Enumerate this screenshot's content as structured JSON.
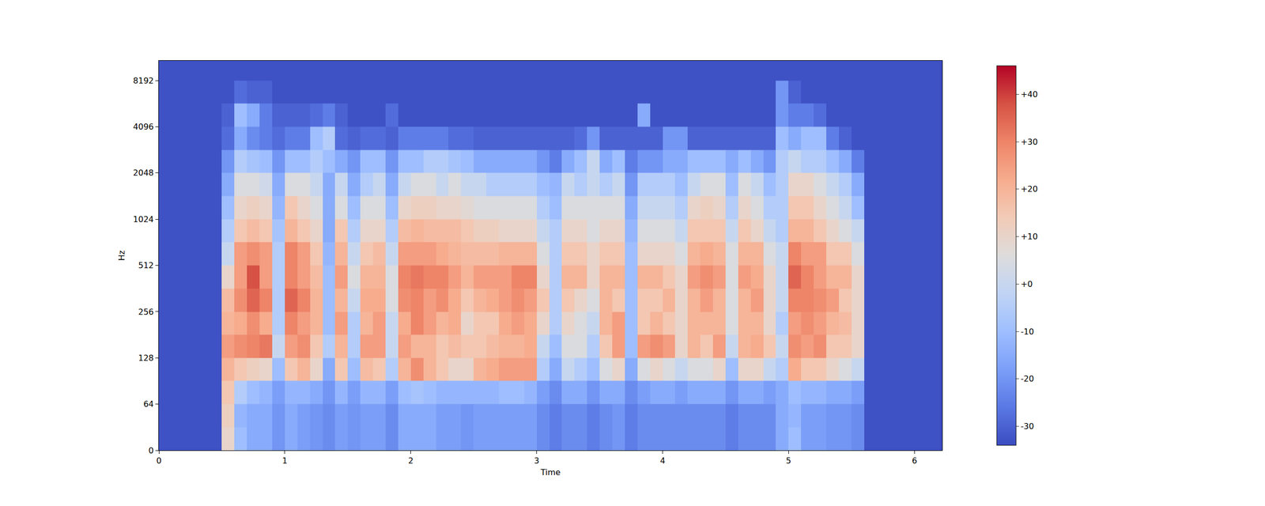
{
  "chart_data": {
    "type": "heatmap",
    "x_label": "Time",
    "y_label": "Hz",
    "log": "y",
    "grid": false,
    "xlim": [
      0,
      6.22
    ],
    "xticks": [
      0,
      1,
      2,
      3,
      4,
      5,
      6
    ],
    "ylim": [
      0,
      11025
    ],
    "yticks": [
      0,
      64,
      128,
      256,
      512,
      1024,
      2048,
      4096,
      8192
    ],
    "x": [
      0.05,
      0.15,
      0.25,
      0.35,
      0.45,
      0.55,
      0.65,
      0.75,
      0.85,
      0.95,
      1.05,
      1.15,
      1.25,
      1.35,
      1.45,
      1.55,
      1.65,
      1.75,
      1.85,
      1.95,
      2.05,
      2.15,
      2.25,
      2.35,
      2.45,
      2.55,
      2.65,
      2.75,
      2.85,
      2.95,
      3.05,
      3.15,
      3.25,
      3.35,
      3.45,
      3.55,
      3.65,
      3.75,
      3.85,
      3.95,
      4.05,
      4.15,
      4.25,
      4.35,
      4.45,
      4.55,
      4.65,
      4.75,
      4.85,
      4.95,
      5.05,
      5.15,
      5.25,
      5.35,
      5.45,
      5.55,
      5.65,
      5.75,
      5.85,
      5.95,
      6.05,
      6.15
    ],
    "y": [
      16,
      48,
      76,
      108,
      152,
      215,
      304,
      431,
      609,
      861,
      1218,
      1722,
      2436,
      3444,
      4871,
      6889,
      9742
    ],
    "cells": [
      [
        -33,
        -33,
        -33,
        -33,
        -33,
        -33,
        -33,
        -33,
        -33,
        -33,
        -33,
        -33,
        -33,
        -33,
        -33,
        -33,
        -33
      ],
      [
        -33,
        -33,
        -33,
        -33,
        -33,
        -33,
        -33,
        -33,
        -33,
        -33,
        -33,
        -33,
        -33,
        -33,
        -33,
        -33,
        -33
      ],
      [
        -33,
        -33,
        -33,
        -33,
        -33,
        -33,
        -33,
        -33,
        -33,
        -33,
        -33,
        -33,
        -33,
        -33,
        -33,
        -33,
        -33
      ],
      [
        -33,
        -33,
        -33,
        -33,
        -33,
        -33,
        -33,
        -33,
        -33,
        -33,
        -33,
        -33,
        -33,
        -33,
        -33,
        -33,
        -33
      ],
      [
        -33,
        -33,
        -33,
        -33,
        -33,
        -33,
        -33,
        -33,
        -33,
        -33,
        -33,
        -33,
        -33,
        -33,
        -33,
        -33,
        -33
      ],
      [
        10,
        12,
        15,
        20,
        25,
        20,
        18,
        10,
        0,
        -5,
        -10,
        -15,
        -20,
        -28,
        -30,
        -33,
        -33
      ],
      [
        -10,
        -12,
        -5,
        15,
        28,
        22,
        28,
        25,
        25,
        15,
        10,
        5,
        -5,
        -15,
        -10,
        -28,
        -33
      ],
      [
        -15,
        -15,
        -10,
        12,
        30,
        28,
        35,
        38,
        28,
        18,
        12,
        5,
        -8,
        -22,
        -15,
        -30,
        -33
      ],
      [
        -15,
        -15,
        -12,
        10,
        32,
        22,
        30,
        25,
        25,
        15,
        10,
        2,
        -10,
        -25,
        -25,
        -30,
        -33
      ],
      [
        -20,
        -20,
        -18,
        -10,
        0,
        -5,
        -5,
        -5,
        -5,
        -8,
        -12,
        -15,
        -20,
        -28,
        -30,
        -33,
        -33
      ],
      [
        -15,
        -15,
        -12,
        15,
        25,
        30,
        35,
        30,
        30,
        20,
        15,
        5,
        -10,
        -25,
        -30,
        -33,
        -33
      ],
      [
        -18,
        -18,
        -12,
        20,
        28,
        25,
        30,
        25,
        25,
        15,
        10,
        5,
        -10,
        -25,
        -30,
        -33,
        -33
      ],
      [
        -20,
        -20,
        -15,
        10,
        15,
        20,
        20,
        18,
        15,
        10,
        5,
        0,
        -5,
        -10,
        -28,
        -33,
        -33
      ],
      [
        -22,
        -22,
        -20,
        -15,
        -5,
        -10,
        -10,
        -10,
        -12,
        -15,
        -15,
        -15,
        -10,
        -5,
        -25,
        -33,
        -33
      ],
      [
        -18,
        -18,
        -12,
        15,
        20,
        25,
        20,
        25,
        20,
        15,
        5,
        0,
        -15,
        -28,
        -30,
        -33,
        -33
      ],
      [
        -20,
        -20,
        -18,
        -10,
        -5,
        -5,
        0,
        5,
        0,
        -5,
        -10,
        -15,
        -20,
        -30,
        -33,
        -33,
        -33
      ],
      [
        -18,
        -18,
        -12,
        18,
        25,
        20,
        22,
        20,
        15,
        10,
        5,
        -5,
        -10,
        -28,
        -33,
        -33,
        -33
      ],
      [
        -18,
        -18,
        -12,
        15,
        25,
        25,
        22,
        20,
        18,
        10,
        5,
        0,
        -10,
        -28,
        -33,
        -33,
        -33
      ],
      [
        -22,
        -22,
        -18,
        -5,
        0,
        0,
        5,
        5,
        0,
        -5,
        -10,
        -15,
        -20,
        -30,
        -28,
        -33,
        -33
      ],
      [
        -15,
        -15,
        -10,
        20,
        25,
        22,
        28,
        30,
        25,
        18,
        10,
        0,
        -10,
        -25,
        -33,
        -33,
        -33
      ],
      [
        -15,
        -15,
        -8,
        28,
        20,
        30,
        30,
        32,
        25,
        20,
        12,
        5,
        -10,
        -25,
        -33,
        -33,
        -33
      ],
      [
        -15,
        -15,
        -10,
        20,
        20,
        25,
        25,
        30,
        25,
        18,
        12,
        5,
        -5,
        -25,
        -33,
        -33,
        -33
      ],
      [
        -18,
        -18,
        -12,
        15,
        15,
        20,
        28,
        30,
        22,
        18,
        10,
        0,
        -5,
        -25,
        -33,
        -33,
        -33
      ],
      [
        -18,
        -18,
        -12,
        10,
        18,
        22,
        22,
        25,
        20,
        18,
        10,
        5,
        -8,
        -28,
        -33,
        -33,
        -33
      ],
      [
        -20,
        -20,
        -12,
        10,
        15,
        10,
        15,
        20,
        18,
        15,
        8,
        0,
        -10,
        -28,
        -33,
        -33,
        -33
      ],
      [
        -18,
        -18,
        -12,
        20,
        15,
        15,
        20,
        25,
        18,
        12,
        5,
        0,
        -15,
        -30,
        -33,
        -33,
        -33
      ],
      [
        -18,
        -18,
        -12,
        22,
        18,
        15,
        22,
        25,
        18,
        12,
        5,
        -5,
        -15,
        -30,
        -33,
        -33,
        -33
      ],
      [
        -18,
        -18,
        -10,
        25,
        20,
        22,
        25,
        25,
        20,
        10,
        5,
        -5,
        -15,
        -30,
        -33,
        -33,
        -33
      ],
      [
        -18,
        -18,
        -10,
        25,
        20,
        25,
        28,
        30,
        20,
        10,
        5,
        -5,
        -15,
        -30,
        -33,
        -33,
        -33
      ],
      [
        -18,
        -18,
        -12,
        25,
        22,
        22,
        25,
        30,
        20,
        10,
        5,
        -5,
        -15,
        -30,
        -33,
        -33,
        -33
      ],
      [
        -22,
        -22,
        -18,
        -5,
        0,
        10,
        15,
        10,
        5,
        0,
        -5,
        -10,
        -20,
        -30,
        -33,
        -33,
        -33
      ],
      [
        -25,
        -25,
        -22,
        -15,
        -10,
        -5,
        -5,
        -5,
        -5,
        -5,
        -10,
        -12,
        -25,
        -30,
        -33,
        -33,
        -33
      ],
      [
        -22,
        -22,
        -15,
        0,
        5,
        10,
        15,
        20,
        15,
        10,
        5,
        0,
        -15,
        -30,
        -33,
        -33,
        -33
      ],
      [
        -22,
        -22,
        -15,
        -5,
        5,
        5,
        10,
        20,
        15,
        10,
        5,
        -5,
        -10,
        -28,
        -33,
        -33,
        -33
      ],
      [
        -25,
        -25,
        -20,
        -10,
        -5,
        0,
        5,
        10,
        10,
        5,
        5,
        0,
        0,
        -20,
        -33,
        -33,
        -33
      ],
      [
        -22,
        -22,
        -15,
        5,
        15,
        20,
        20,
        20,
        15,
        10,
        5,
        -5,
        -15,
        -30,
        -33,
        -33,
        -33
      ],
      [
        -20,
        -20,
        -15,
        10,
        25,
        25,
        15,
        20,
        15,
        10,
        5,
        0,
        -10,
        -30,
        -33,
        -33,
        -33
      ],
      [
        -25,
        -25,
        -22,
        -15,
        -10,
        -10,
        -10,
        -10,
        -10,
        -12,
        -15,
        -20,
        -25,
        -30,
        -33,
        -33,
        -33
      ],
      [
        -22,
        -22,
        -18,
        5,
        25,
        15,
        15,
        20,
        10,
        5,
        0,
        -5,
        -20,
        -30,
        -15,
        -33,
        -33
      ],
      [
        -22,
        -22,
        -15,
        10,
        28,
        20,
        15,
        20,
        10,
        5,
        0,
        -5,
        -20,
        -30,
        -33,
        -33,
        -33
      ],
      [
        -22,
        -22,
        -15,
        5,
        25,
        15,
        20,
        15,
        10,
        5,
        0,
        -5,
        -15,
        -20,
        -33,
        -33,
        -33
      ],
      [
        -22,
        -22,
        -18,
        0,
        10,
        10,
        10,
        10,
        5,
        0,
        -5,
        -10,
        -15,
        -20,
        -33,
        -33,
        -33
      ],
      [
        -22,
        -22,
        -15,
        5,
        20,
        20,
        20,
        25,
        20,
        15,
        10,
        0,
        -10,
        -30,
        -33,
        -33,
        -33
      ],
      [
        -22,
        -22,
        -15,
        5,
        15,
        20,
        25,
        28,
        22,
        15,
        12,
        5,
        -10,
        -30,
        -33,
        -33,
        -33
      ],
      [
        -22,
        -22,
        -15,
        10,
        25,
        20,
        20,
        25,
        20,
        15,
        10,
        5,
        -10,
        -30,
        -33,
        -33,
        -33
      ],
      [
        -25,
        -25,
        -20,
        -10,
        0,
        5,
        5,
        5,
        5,
        0,
        -5,
        -10,
        -15,
        -30,
        -33,
        -33,
        -33
      ],
      [
        -22,
        -22,
        -15,
        10,
        20,
        20,
        20,
        25,
        20,
        15,
        10,
        5,
        -10,
        -30,
        -33,
        -33,
        -33
      ],
      [
        -22,
        -22,
        -15,
        10,
        22,
        20,
        25,
        22,
        20,
        10,
        5,
        0,
        -15,
        -30,
        -33,
        -33,
        -33
      ],
      [
        -22,
        -22,
        -18,
        0,
        15,
        10,
        10,
        10,
        5,
        0,
        -5,
        -10,
        -20,
        -30,
        -33,
        -33,
        -33
      ],
      [
        -15,
        -15,
        -15,
        -5,
        0,
        -5,
        0,
        0,
        0,
        -5,
        -5,
        -5,
        -5,
        -10,
        -20,
        -20,
        -33
      ],
      [
        -10,
        -12,
        -10,
        22,
        28,
        25,
        30,
        35,
        30,
        20,
        15,
        10,
        0,
        -15,
        -25,
        -30,
        -33
      ],
      [
        -18,
        -18,
        -12,
        15,
        25,
        28,
        30,
        30,
        25,
        20,
        15,
        10,
        -5,
        -10,
        -25,
        -33,
        -33
      ],
      [
        -18,
        -18,
        -12,
        15,
        28,
        25,
        28,
        25,
        25,
        15,
        10,
        5,
        -5,
        -10,
        -28,
        -33,
        -33
      ],
      [
        -20,
        -20,
        -15,
        10,
        15,
        20,
        25,
        20,
        15,
        10,
        5,
        0,
        -10,
        -25,
        -33,
        -33,
        -33
      ],
      [
        -20,
        -20,
        -15,
        5,
        15,
        18,
        15,
        20,
        15,
        5,
        0,
        -5,
        -15,
        -30,
        -33,
        -33,
        -33
      ],
      [
        -22,
        -22,
        -18,
        0,
        10,
        10,
        10,
        10,
        5,
        0,
        -10,
        -15,
        -25,
        -33,
        -33,
        -33,
        -33
      ],
      [
        -33,
        -33,
        -33,
        -33,
        -33,
        -33,
        -33,
        -33,
        -33,
        -33,
        -33,
        -33,
        -33,
        -33,
        -33,
        -33,
        -33
      ],
      [
        -33,
        -33,
        -33,
        -33,
        -33,
        -33,
        -33,
        -33,
        -33,
        -33,
        -33,
        -33,
        -33,
        -33,
        -33,
        -33,
        -33
      ],
      [
        -33,
        -33,
        -33,
        -33,
        -33,
        -33,
        -33,
        -33,
        -33,
        -33,
        -33,
        -33,
        -33,
        -33,
        -33,
        -33,
        -33
      ],
      [
        -33,
        -33,
        -33,
        -33,
        -33,
        -33,
        -33,
        -33,
        -33,
        -33,
        -33,
        -33,
        -33,
        -33,
        -33,
        -33,
        -33
      ],
      [
        -33,
        -33,
        -33,
        -33,
        -33,
        -33,
        -33,
        -33,
        -33,
        -33,
        -33,
        -33,
        -33,
        -33,
        -33,
        -33,
        -33
      ],
      [
        -33,
        -33,
        -33,
        -33,
        -33,
        -33,
        -33,
        -33,
        -33,
        -33,
        -33,
        -33,
        -33,
        -33,
        -33,
        -33,
        -33
      ]
    ],
    "color_range": [
      -34,
      46
    ],
    "color_ticks": [
      {
        "value": 40,
        "label": "+40"
      },
      {
        "value": 30,
        "label": "+30"
      },
      {
        "value": 20,
        "label": "+20"
      },
      {
        "value": 10,
        "label": "+10"
      },
      {
        "value": 0,
        "label": "+0"
      },
      -10,
      -20,
      -30
    ]
  }
}
